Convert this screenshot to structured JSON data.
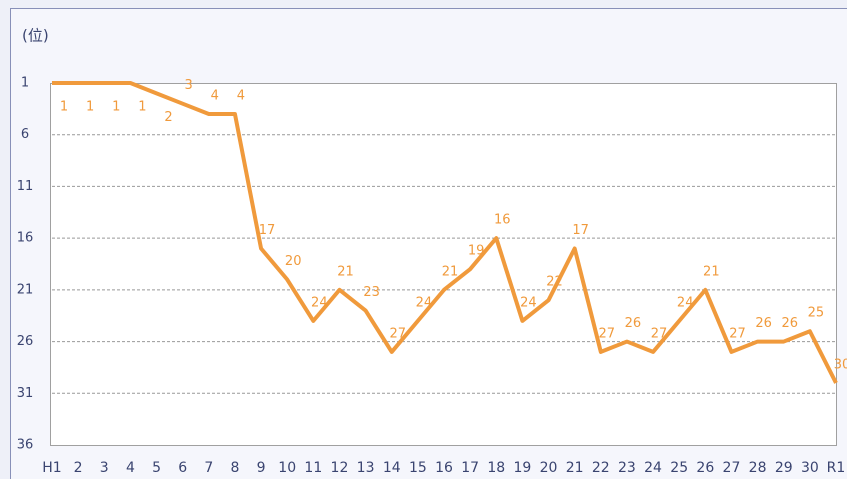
{
  "chart_data": {
    "type": "line",
    "title": "(位)",
    "categories": [
      "H1",
      "2",
      "3",
      "4",
      "5",
      "6",
      "7",
      "8",
      "9",
      "10",
      "11",
      "12",
      "13",
      "14",
      "15",
      "16",
      "17",
      "18",
      "19",
      "20",
      "21",
      "22",
      "23",
      "24",
      "25",
      "26",
      "27",
      "28",
      "29",
      "30",
      "R1"
    ],
    "series": [
      {
        "name": null,
        "color": "#f09a3c",
        "values": [
          1,
          1,
          1,
          1,
          2,
          3,
          4,
          4,
          17,
          20,
          24,
          21,
          23,
          27,
          24,
          21,
          19,
          16,
          24,
          22,
          17,
          27,
          26,
          27,
          24,
          21,
          27,
          26,
          26,
          25,
          30
        ]
      }
    ],
    "ylim": [
      36,
      1
    ],
    "yticks": [
      1,
      6,
      11,
      16,
      21,
      26,
      31,
      36
    ],
    "grid": true
  }
}
